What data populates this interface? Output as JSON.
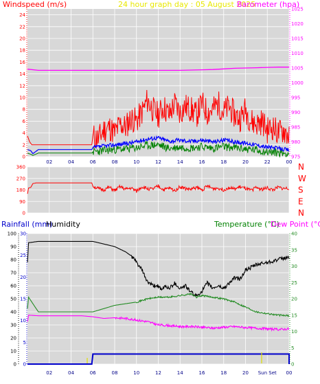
{
  "header": {
    "windspeed_label": "Windspeed (m/s)",
    "title": "24 hour graph day : 05 August 2025",
    "barometer_label": "Barometer (hpa)",
    "rainfall_label": "Rainfall (mm)",
    "humidity_label": "Humidity",
    "temperature_label": "Temperature (°C)",
    "dewpoint_label": "Dew Point (°C)"
  },
  "colors": {
    "plot_bg": "#d8d8d8",
    "grid": "#ffffff",
    "wind_axis": "#ff0000",
    "baro_axis": "#ff00ff",
    "gust": "#ff0000",
    "avg": "#0000ff",
    "low": "#008000",
    "baro": "#ff00ff",
    "humidity": "#000000",
    "temperature": "#228b22",
    "dewpoint": "#ff00ff",
    "rain": "#0000cc",
    "title": "#e8e800",
    "sun_marker": "#ffff00"
  },
  "chart_data": [
    {
      "type": "line",
      "title": "24 hour graph day : 05 August 2025",
      "x_ticks": [
        "02",
        "04",
        "06",
        "08",
        "10",
        "12",
        "14",
        "16",
        "18",
        "20",
        "22",
        "00"
      ],
      "y_left": {
        "label": "Windspeed (m/s)",
        "range": [
          0,
          25
        ],
        "ticks": [
          "0",
          "2",
          "4",
          "6",
          "8",
          "10",
          "12",
          "14",
          "16",
          "18",
          "20",
          "22",
          "24"
        ]
      },
      "y_right": {
        "label": "Barometer (hpa)",
        "range": [
          975,
          1025
        ],
        "ticks": [
          "975",
          "980",
          "985",
          "990",
          "995",
          "1000",
          "1005",
          "1010",
          "1015",
          "1020",
          "1025"
        ]
      },
      "series": [
        {
          "name": "Gust",
          "x": [
            0.0,
            0.2,
            0.4,
            0.6,
            5.9,
            6.0,
            6.5,
            7.0,
            7.5,
            8.0,
            8.5,
            9.0,
            9.5,
            10.0,
            10.5,
            11.0,
            11.5,
            12.0,
            12.5,
            13.0,
            13.5,
            14.0,
            14.5,
            15.0,
            15.5,
            16.0,
            16.5,
            17.0,
            17.5,
            18.0,
            18.5,
            19.0,
            19.5,
            20.0,
            20.5,
            21.0,
            21.5,
            22.0,
            22.5,
            23.0,
            23.5,
            24.0
          ],
          "values": [
            3.5,
            2.5,
            2.0,
            2.0,
            2.0,
            3.5,
            3.0,
            4.5,
            5.0,
            4.0,
            5.5,
            5.0,
            6.5,
            6.0,
            7.5,
            9.5,
            8.0,
            7.0,
            8.5,
            7.0,
            9.0,
            7.5,
            8.5,
            8.0,
            7.0,
            9.0,
            7.5,
            8.0,
            9.0,
            7.5,
            8.5,
            7.0,
            6.5,
            8.0,
            6.0,
            5.5,
            6.0,
            4.5,
            5.0,
            4.0,
            4.5,
            3.5
          ]
        },
        {
          "name": "Average",
          "x": [
            0.0,
            0.3,
            0.5,
            1.0,
            5.9,
            6.0,
            7.0,
            8.0,
            9.0,
            10.0,
            11.0,
            12.0,
            13.0,
            14.0,
            15.0,
            16.0,
            17.0,
            18.0,
            19.0,
            20.0,
            21.0,
            22.0,
            23.0,
            24.0
          ],
          "values": [
            1.2,
            1.0,
            0.5,
            1.2,
            1.2,
            1.5,
            1.8,
            2.0,
            2.2,
            2.5,
            3.0,
            3.2,
            2.6,
            2.8,
            2.6,
            2.8,
            2.5,
            2.8,
            2.5,
            2.3,
            2.0,
            1.6,
            1.4,
            1.1
          ]
        },
        {
          "name": "Low",
          "x": [
            0.0,
            0.3,
            0.5,
            1.0,
            5.9,
            6.0,
            7.0,
            8.0,
            9.0,
            10.0,
            11.0,
            12.0,
            13.0,
            14.0,
            15.0,
            16.0,
            17.0,
            18.0,
            19.0,
            20.0,
            21.0,
            22.0,
            23.0,
            24.0
          ],
          "values": [
            0.6,
            0.4,
            0.2,
            0.6,
            0.6,
            0.8,
            1.0,
            1.2,
            1.3,
            1.5,
            1.9,
            2.0,
            1.4,
            1.6,
            1.5,
            1.7,
            1.4,
            1.7,
            1.5,
            1.3,
            1.1,
            0.8,
            0.7,
            0.5
          ]
        },
        {
          "name": "Barometer",
          "x": [
            0,
            1,
            2,
            3,
            4,
            5,
            6,
            7,
            8,
            9,
            10,
            11,
            12,
            13,
            14,
            15,
            16,
            17,
            18,
            19,
            20,
            21,
            22,
            23,
            24
          ],
          "values": [
            1004.6,
            1004.2,
            1004.2,
            1004.2,
            1004.2,
            1004.2,
            1004.2,
            1004.2,
            1004.2,
            1004.2,
            1004.2,
            1004.2,
            1004.2,
            1004.2,
            1004.2,
            1004.3,
            1004.4,
            1004.5,
            1004.7,
            1004.9,
            1005.0,
            1005.1,
            1005.2,
            1005.3,
            1005.3
          ]
        }
      ]
    },
    {
      "type": "line",
      "y_left": {
        "range": [
          0,
          360
        ],
        "ticks": [
          "0",
          "90",
          "180",
          "270",
          "360"
        ]
      },
      "y_right_labels": [
        "N",
        "W",
        "S",
        "E",
        "N"
      ],
      "series": [
        {
          "name": "Wind direction",
          "x": [
            0.0,
            0.1,
            0.3,
            0.5,
            0.8,
            5.9,
            6.0,
            6.5,
            7.0,
            7.5,
            8.0,
            8.5,
            9.0,
            9.5,
            10.0,
            10.5,
            11.0,
            11.5,
            12.0,
            12.5,
            13.0,
            13.5,
            14.0,
            14.5,
            15.0,
            15.5,
            16.0,
            16.5,
            17.0,
            17.5,
            18.0,
            18.5,
            19.0,
            19.5,
            20.0,
            20.5,
            21.0,
            21.5,
            22.0,
            22.5,
            23.0,
            23.5,
            24.0
          ],
          "values": [
            150,
            195,
            200,
            230,
            235,
            235,
            210,
            190,
            180,
            200,
            175,
            205,
            185,
            195,
            170,
            205,
            190,
            185,
            210,
            180,
            195,
            175,
            205,
            190,
            185,
            200,
            180,
            210,
            190,
            195,
            180,
            200,
            185,
            205,
            190,
            175,
            200,
            185,
            195,
            180,
            200,
            190,
            195
          ]
        }
      ]
    },
    {
      "type": "line",
      "x_ticks": [
        "02",
        "04",
        "06",
        "08",
        "10",
        "12",
        "14",
        "16",
        "18",
        "20",
        "Sun Set",
        "00"
      ],
      "y_left_outer": {
        "label": "Humidity",
        "range": [
          0,
          100
        ],
        "ticks": [
          "0",
          "10",
          "20",
          "30",
          "40",
          "50",
          "60",
          "70",
          "80",
          "90",
          "100"
        ]
      },
      "y_left_inner": {
        "label": "Rainfall (mm)",
        "range": [
          0,
          30
        ],
        "ticks": [
          "0",
          "5",
          "10",
          "15",
          "20",
          "25",
          "30"
        ]
      },
      "y_right": {
        "label": "Temperature (°C)",
        "range": [
          0,
          40
        ],
        "ticks": [
          "0",
          "5",
          "10",
          "15",
          "20",
          "25",
          "30",
          "35",
          "40"
        ]
      },
      "series": [
        {
          "name": "Humidity",
          "x": [
            0.0,
            0.1,
            1,
            2,
            3,
            4,
            5,
            6,
            7,
            8,
            9,
            9.5,
            10,
            10.5,
            11,
            11.5,
            12,
            12.3,
            12.6,
            13,
            13.5,
            14,
            14.5,
            15,
            15.5,
            16,
            16.5,
            17,
            17.5,
            18,
            18.5,
            19,
            19.5,
            20,
            21,
            22,
            23,
            24
          ],
          "values": [
            78,
            93,
            94,
            94,
            94,
            94,
            94,
            94,
            92,
            90,
            86,
            83,
            78,
            72,
            63,
            60,
            60,
            56,
            60,
            58,
            62,
            58,
            60,
            55,
            52,
            56,
            62,
            58,
            60,
            58,
            62,
            66,
            65,
            72,
            76,
            78,
            80,
            82
          ]
        },
        {
          "name": "Temperature",
          "x": [
            0.0,
            0.1,
            1,
            2,
            3,
            4,
            5,
            6,
            7,
            8,
            9,
            10,
            11,
            12,
            13,
            14,
            15,
            15.5,
            16,
            17,
            18,
            19,
            20,
            21,
            22,
            23,
            24
          ],
          "values": [
            17.0,
            20.5,
            16.0,
            16.0,
            16.0,
            16.0,
            16.0,
            16.0,
            17.0,
            18.0,
            18.5,
            19.0,
            20.0,
            20.5,
            20.5,
            21.0,
            21.5,
            20.5,
            21.0,
            20.5,
            20.0,
            19.0,
            17.5,
            16.0,
            15.5,
            15.0,
            14.8
          ]
        },
        {
          "name": "Dew Point",
          "x": [
            0.0,
            0.1,
            1,
            2,
            3,
            4,
            5,
            6,
            7,
            8,
            9,
            10,
            11,
            12,
            13,
            14,
            15,
            16,
            17,
            18,
            19,
            20,
            21,
            22,
            23,
            24
          ],
          "values": [
            13.0,
            15.0,
            14.8,
            14.8,
            14.8,
            14.8,
            14.8,
            14.5,
            14.0,
            14.2,
            14.0,
            13.5,
            13.0,
            12.0,
            11.8,
            11.5,
            11.5,
            11.3,
            11.0,
            11.3,
            11.5,
            11.2,
            11.0,
            10.8,
            10.6,
            10.8
          ]
        },
        {
          "name": "Rainfall",
          "x": [
            0.0,
            5.9,
            6.0,
            24.0,
            24.0
          ],
          "values": [
            0.0,
            0.0,
            2.3,
            2.3,
            0.0
          ]
        }
      ]
    }
  ]
}
